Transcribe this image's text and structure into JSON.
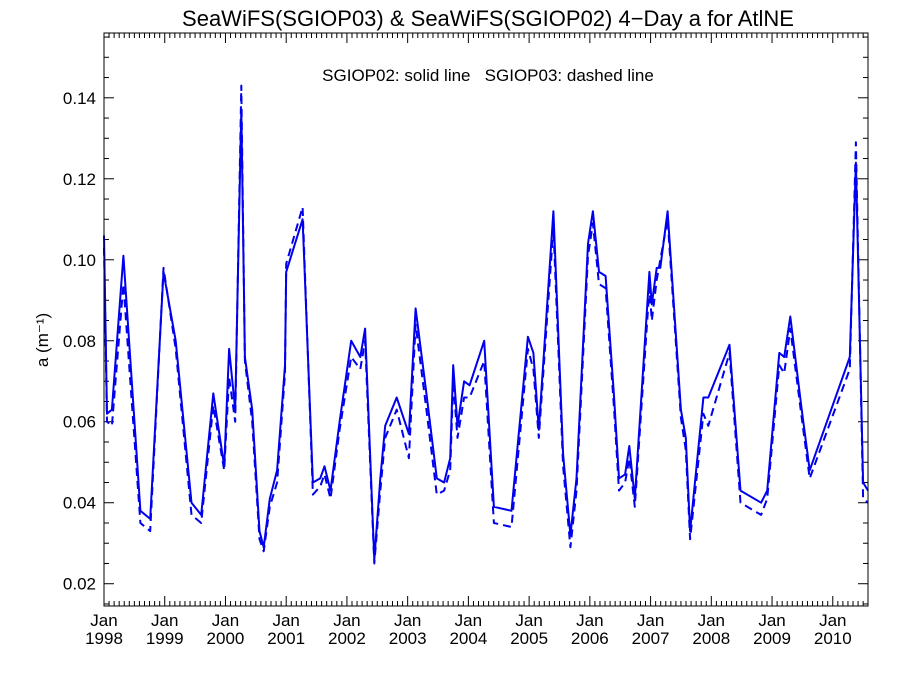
{
  "chart_data": {
    "type": "line",
    "title": "SeaWiFS(SGIOP03) & SeaWiFS(SGIOP02) 4−Day a for AtlNE",
    "annotation": "SGIOP02: solid line   SGIOP03: dashed line",
    "ylabel": "a (m⁻¹)",
    "xlim": [
      1998.0,
      2010.58
    ],
    "ylim": [
      0.0145,
      0.156
    ],
    "yticks": [
      0.02,
      0.04,
      0.06,
      0.08,
      0.1,
      0.12,
      0.14
    ],
    "ytick_labels": [
      "0.02",
      "0.04",
      "0.06",
      "0.08",
      "0.10",
      "0.12",
      "0.14"
    ],
    "xticks": [
      {
        "x": 1998,
        "month": "Jan",
        "year": "1998"
      },
      {
        "x": 1999,
        "month": "Jan",
        "year": "1999"
      },
      {
        "x": 2000,
        "month": "Jan",
        "year": "2000"
      },
      {
        "x": 2001,
        "month": "Jan",
        "year": "2001"
      },
      {
        "x": 2002,
        "month": "Jan",
        "year": "2002"
      },
      {
        "x": 2003,
        "month": "Jan",
        "year": "2003"
      },
      {
        "x": 2004,
        "month": "Jan",
        "year": "2004"
      },
      {
        "x": 2005,
        "month": "Jan",
        "year": "2005"
      },
      {
        "x": 2006,
        "month": "Jan",
        "year": "2006"
      },
      {
        "x": 2007,
        "month": "Jan",
        "year": "2007"
      },
      {
        "x": 2008,
        "month": "Jan",
        "year": "2008"
      },
      {
        "x": 2009,
        "month": "Jan",
        "year": "2009"
      },
      {
        "x": 2010,
        "month": "Jan",
        "year": "2010"
      }
    ],
    "grid": false,
    "colors": {
      "line": "#0000ee",
      "axes": "#000000"
    },
    "series": [
      {
        "name": "SGIOP02",
        "style": "solid",
        "points": [
          [
            1998.0,
            0.106
          ],
          [
            1998.05,
            0.062
          ],
          [
            1998.13,
            0.063
          ],
          [
            1998.32,
            0.101
          ],
          [
            1998.6,
            0.038
          ],
          [
            1998.76,
            0.036
          ],
          [
            1998.98,
            0.097
          ],
          [
            1999.18,
            0.08
          ],
          [
            1999.44,
            0.04
          ],
          [
            1999.6,
            0.037
          ],
          [
            1999.8,
            0.067
          ],
          [
            1999.98,
            0.049
          ],
          [
            2000.06,
            0.078
          ],
          [
            2000.16,
            0.063
          ],
          [
            2000.26,
            0.137
          ],
          [
            2000.32,
            0.076
          ],
          [
            2000.44,
            0.063
          ],
          [
            2000.56,
            0.033
          ],
          [
            2000.63,
            0.029
          ],
          [
            2000.73,
            0.041
          ],
          [
            2000.85,
            0.048
          ],
          [
            2000.98,
            0.074
          ],
          [
            2001.0,
            0.097
          ],
          [
            2001.27,
            0.11
          ],
          [
            2001.44,
            0.045
          ],
          [
            2001.56,
            0.046
          ],
          [
            2001.63,
            0.049
          ],
          [
            2001.73,
            0.043
          ],
          [
            2001.88,
            0.06
          ],
          [
            2002.07,
            0.08
          ],
          [
            2002.22,
            0.076
          ],
          [
            2002.3,
            0.083
          ],
          [
            2002.45,
            0.026
          ],
          [
            2002.55,
            0.046
          ],
          [
            2002.63,
            0.059
          ],
          [
            2002.82,
            0.066
          ],
          [
            2003.02,
            0.057
          ],
          [
            2003.13,
            0.088
          ],
          [
            2003.3,
            0.068
          ],
          [
            2003.48,
            0.046
          ],
          [
            2003.6,
            0.045
          ],
          [
            2003.7,
            0.051
          ],
          [
            2003.75,
            0.074
          ],
          [
            2003.82,
            0.059
          ],
          [
            2003.93,
            0.07
          ],
          [
            2004.02,
            0.069
          ],
          [
            2004.26,
            0.08
          ],
          [
            2004.42,
            0.039
          ],
          [
            2004.71,
            0.038
          ],
          [
            2004.98,
            0.081
          ],
          [
            2005.07,
            0.077
          ],
          [
            2005.16,
            0.058
          ],
          [
            2005.4,
            0.112
          ],
          [
            2005.56,
            0.052
          ],
          [
            2005.68,
            0.032
          ],
          [
            2005.78,
            0.046
          ],
          [
            2005.97,
            0.104
          ],
          [
            2006.05,
            0.112
          ],
          [
            2006.15,
            0.097
          ],
          [
            2006.26,
            0.096
          ],
          [
            2006.4,
            0.066
          ],
          [
            2006.48,
            0.046
          ],
          [
            2006.58,
            0.047
          ],
          [
            2006.65,
            0.054
          ],
          [
            2006.74,
            0.041
          ],
          [
            2006.98,
            0.097
          ],
          [
            2007.02,
            0.089
          ],
          [
            2007.1,
            0.098
          ],
          [
            2007.16,
            0.098
          ],
          [
            2007.28,
            0.112
          ],
          [
            2007.5,
            0.063
          ],
          [
            2007.58,
            0.056
          ],
          [
            2007.65,
            0.033
          ],
          [
            2007.87,
            0.066
          ],
          [
            2007.95,
            0.066
          ],
          [
            2008.3,
            0.079
          ],
          [
            2008.48,
            0.043
          ],
          [
            2008.82,
            0.04
          ],
          [
            2008.92,
            0.043
          ],
          [
            2009.12,
            0.077
          ],
          [
            2009.2,
            0.076
          ],
          [
            2009.3,
            0.086
          ],
          [
            2009.48,
            0.064
          ],
          [
            2009.62,
            0.048
          ],
          [
            2010.28,
            0.076
          ],
          [
            2010.38,
            0.124
          ],
          [
            2010.5,
            0.045
          ],
          [
            2010.58,
            0.043
          ]
        ]
      },
      {
        "name": "SGIOP03",
        "style": "dashed",
        "points": [
          [
            1998.0,
            0.103
          ],
          [
            1998.05,
            0.06
          ],
          [
            1998.13,
            0.059
          ],
          [
            1998.32,
            0.094
          ],
          [
            1998.6,
            0.035
          ],
          [
            1998.76,
            0.033
          ],
          [
            1998.98,
            0.098
          ],
          [
            1999.18,
            0.078
          ],
          [
            1999.44,
            0.037
          ],
          [
            1999.6,
            0.035
          ],
          [
            1999.8,
            0.064
          ],
          [
            1999.98,
            0.048
          ],
          [
            2000.06,
            0.071
          ],
          [
            2000.16,
            0.06
          ],
          [
            2000.26,
            0.143
          ],
          [
            2000.32,
            0.075
          ],
          [
            2000.44,
            0.06
          ],
          [
            2000.56,
            0.031
          ],
          [
            2000.63,
            0.028
          ],
          [
            2000.73,
            0.039
          ],
          [
            2000.85,
            0.045
          ],
          [
            2000.98,
            0.072
          ],
          [
            2001.0,
            0.099
          ],
          [
            2001.27,
            0.113
          ],
          [
            2001.44,
            0.042
          ],
          [
            2001.56,
            0.044
          ],
          [
            2001.63,
            0.047
          ],
          [
            2001.73,
            0.041
          ],
          [
            2001.88,
            0.058
          ],
          [
            2002.07,
            0.076
          ],
          [
            2002.22,
            0.073
          ],
          [
            2002.3,
            0.08
          ],
          [
            2002.45,
            0.025
          ],
          [
            2002.55,
            0.043
          ],
          [
            2002.63,
            0.056
          ],
          [
            2002.82,
            0.063
          ],
          [
            2003.02,
            0.051
          ],
          [
            2003.13,
            0.084
          ],
          [
            2003.3,
            0.064
          ],
          [
            2003.48,
            0.042
          ],
          [
            2003.6,
            0.043
          ],
          [
            2003.7,
            0.048
          ],
          [
            2003.75,
            0.07
          ],
          [
            2003.82,
            0.056
          ],
          [
            2003.93,
            0.066
          ],
          [
            2004.02,
            0.066
          ],
          [
            2004.26,
            0.075
          ],
          [
            2004.42,
            0.035
          ],
          [
            2004.71,
            0.034
          ],
          [
            2004.98,
            0.078
          ],
          [
            2005.07,
            0.073
          ],
          [
            2005.16,
            0.056
          ],
          [
            2005.4,
            0.108
          ],
          [
            2005.56,
            0.049
          ],
          [
            2005.68,
            0.029
          ],
          [
            2005.78,
            0.043
          ],
          [
            2005.97,
            0.101
          ],
          [
            2006.05,
            0.109
          ],
          [
            2006.15,
            0.094
          ],
          [
            2006.26,
            0.093
          ],
          [
            2006.4,
            0.063
          ],
          [
            2006.48,
            0.043
          ],
          [
            2006.58,
            0.045
          ],
          [
            2006.65,
            0.051
          ],
          [
            2006.74,
            0.039
          ],
          [
            2006.98,
            0.093
          ],
          [
            2007.02,
            0.085
          ],
          [
            2007.1,
            0.095
          ],
          [
            2007.16,
            0.1
          ],
          [
            2007.28,
            0.11
          ],
          [
            2007.5,
            0.061
          ],
          [
            2007.58,
            0.053
          ],
          [
            2007.65,
            0.031
          ],
          [
            2007.87,
            0.062
          ],
          [
            2007.95,
            0.059
          ],
          [
            2008.3,
            0.077
          ],
          [
            2008.48,
            0.04
          ],
          [
            2008.82,
            0.037
          ],
          [
            2008.92,
            0.041
          ],
          [
            2009.12,
            0.074
          ],
          [
            2009.2,
            0.072
          ],
          [
            2009.3,
            0.083
          ],
          [
            2009.48,
            0.062
          ],
          [
            2009.62,
            0.046
          ],
          [
            2010.28,
            0.073
          ],
          [
            2010.38,
            0.129
          ],
          [
            2010.5,
            0.041
          ],
          [
            2010.58,
            0.04
          ]
        ]
      }
    ]
  }
}
